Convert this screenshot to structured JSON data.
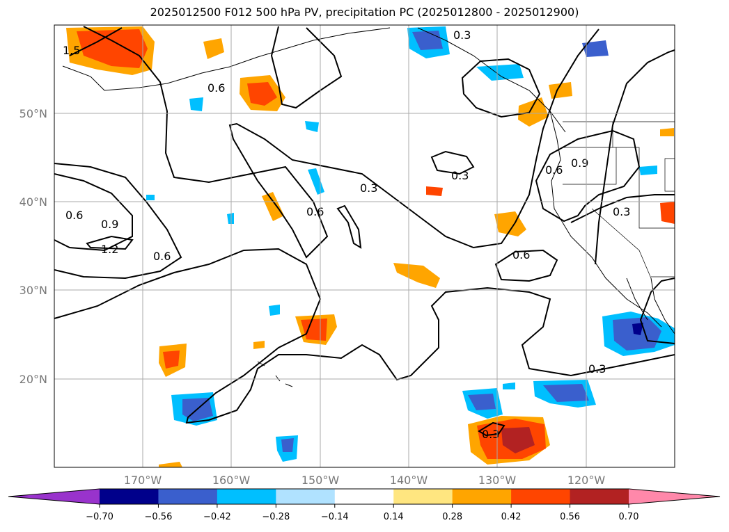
{
  "title": "2025012500 F012 500 hPa PV, precipitation PC (2025012800 - 2025012900)",
  "map": {
    "lat_labels": [
      "50°N",
      "40°N",
      "30°N",
      "20°N"
    ],
    "lon_labels": [
      "170°W",
      "160°W",
      "150°W",
      "140°W",
      "130°W",
      "120°W"
    ],
    "contour_labels": [
      "0.3",
      "0.6",
      "0.9",
      "1.2",
      "1.5"
    ]
  },
  "colorbar": {
    "ticks": [
      "−0.70",
      "−0.56",
      "−0.42",
      "−0.28",
      "−0.14",
      "0.14",
      "0.28",
      "0.42",
      "0.56",
      "0.70"
    ],
    "colors": [
      "#9933cc",
      "#00008b",
      "#3a5fcd",
      "#00bfff",
      "#b0e2ff",
      "#ffffff",
      "#ffe680",
      "#ffa500",
      "#ff4500",
      "#b22222",
      "#ff88aa"
    ]
  }
}
